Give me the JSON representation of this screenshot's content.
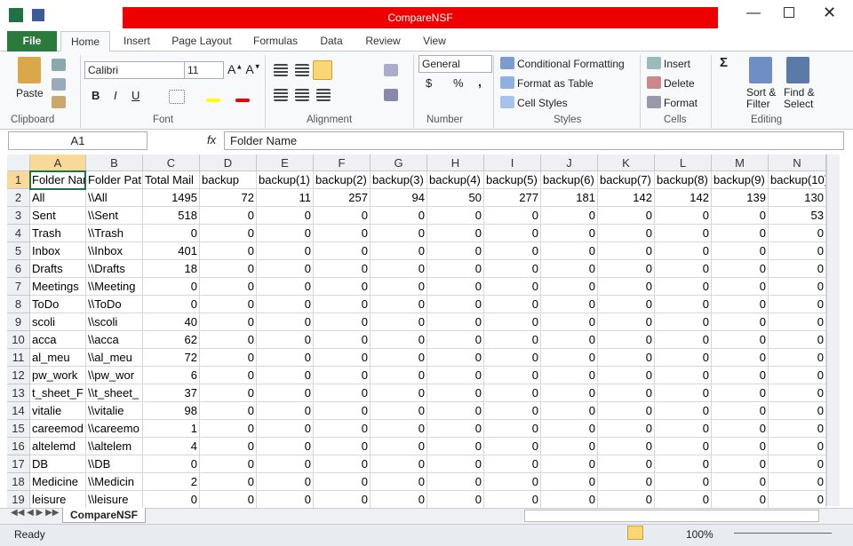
{
  "window": {
    "title": "CompareNSF"
  },
  "ribbon": {
    "tabs": [
      "File",
      "Home",
      "Insert",
      "Page Layout",
      "Formulas",
      "Data",
      "Review",
      "View"
    ],
    "clipboard": {
      "paste": "Paste",
      "label": "Clipboard"
    },
    "font": {
      "name": "Calibri",
      "size": "11",
      "bold": "B",
      "italic": "I",
      "underline": "U",
      "label": "Font"
    },
    "alignment": {
      "label": "Alignment"
    },
    "number": {
      "format": "General",
      "currency": "$",
      "percent": "%",
      "comma": ",",
      "label": "Number"
    },
    "styles": {
      "conditional": "Conditional Formatting",
      "table": "Format as Table",
      "cell": "Cell Styles",
      "label": "Styles"
    },
    "cells": {
      "insert": "Insert",
      "delete": "Delete",
      "format": "Format",
      "label": "Cells"
    },
    "editing": {
      "sort": "Sort & Filter",
      "find": "Find & Select",
      "label": "Editing"
    }
  },
  "formula_bar": {
    "name_box": "A1",
    "fx": "fx",
    "content": "Folder Name"
  },
  "table": {
    "columns": [
      "A",
      "B",
      "C",
      "D",
      "E",
      "F",
      "G",
      "H",
      "I",
      "J",
      "K",
      "L",
      "M",
      "N"
    ],
    "row_numbers": [
      1,
      2,
      3,
      4,
      5,
      6,
      7,
      8,
      9,
      10,
      11,
      12,
      13,
      14,
      15,
      16,
      17,
      18,
      19
    ],
    "rows": [
      [
        "Folder Name",
        "Folder Pat",
        "Total Mail",
        "backup",
        "backup(1)",
        "backup(2)",
        "backup(3)",
        "backup(4)",
        "backup(5)",
        "backup(6)",
        "backup(7)",
        "backup(8)",
        "backup(9)",
        "backup(10)"
      ],
      [
        "All",
        "\\\\All",
        1495,
        72,
        11,
        257,
        94,
        50,
        277,
        181,
        142,
        142,
        139,
        130
      ],
      [
        "Sent",
        "\\\\Sent",
        518,
        0,
        0,
        0,
        0,
        0,
        0,
        0,
        0,
        0,
        0,
        53
      ],
      [
        "Trash",
        "\\\\Trash",
        0,
        0,
        0,
        0,
        0,
        0,
        0,
        0,
        0,
        0,
        0,
        0
      ],
      [
        "Inbox",
        "\\\\Inbox",
        401,
        0,
        0,
        0,
        0,
        0,
        0,
        0,
        0,
        0,
        0,
        0
      ],
      [
        "Drafts",
        "\\\\Drafts",
        18,
        0,
        0,
        0,
        0,
        0,
        0,
        0,
        0,
        0,
        0,
        0
      ],
      [
        "Meetings",
        "\\\\Meeting",
        0,
        0,
        0,
        0,
        0,
        0,
        0,
        0,
        0,
        0,
        0,
        0
      ],
      [
        "ToDo",
        "\\\\ToDo",
        0,
        0,
        0,
        0,
        0,
        0,
        0,
        0,
        0,
        0,
        0,
        0
      ],
      [
        "scoli",
        "\\\\scoli",
        40,
        0,
        0,
        0,
        0,
        0,
        0,
        0,
        0,
        0,
        0,
        0
      ],
      [
        "acca",
        "\\\\acca",
        62,
        0,
        0,
        0,
        0,
        0,
        0,
        0,
        0,
        0,
        0,
        0
      ],
      [
        "al_meu",
        "\\\\al_meu",
        72,
        0,
        0,
        0,
        0,
        0,
        0,
        0,
        0,
        0,
        0,
        0
      ],
      [
        "pw_work",
        "\\\\pw_wor",
        6,
        0,
        0,
        0,
        0,
        0,
        0,
        0,
        0,
        0,
        0,
        0
      ],
      [
        "t_sheet_F",
        "\\\\t_sheet_",
        37,
        0,
        0,
        0,
        0,
        0,
        0,
        0,
        0,
        0,
        0,
        0
      ],
      [
        "vitalie",
        "\\\\vitalie",
        98,
        0,
        0,
        0,
        0,
        0,
        0,
        0,
        0,
        0,
        0,
        0
      ],
      [
        "careemod",
        "\\\\careemo",
        1,
        0,
        0,
        0,
        0,
        0,
        0,
        0,
        0,
        0,
        0,
        0
      ],
      [
        "altelemd",
        "\\\\altelem",
        4,
        0,
        0,
        0,
        0,
        0,
        0,
        0,
        0,
        0,
        0,
        0
      ],
      [
        "DB",
        "\\\\DB",
        0,
        0,
        0,
        0,
        0,
        0,
        0,
        0,
        0,
        0,
        0,
        0
      ],
      [
        "Medicine",
        "\\\\Medicin",
        2,
        0,
        0,
        0,
        0,
        0,
        0,
        0,
        0,
        0,
        0,
        0
      ],
      [
        "leisure",
        "\\\\leisure",
        0,
        0,
        0,
        0,
        0,
        0,
        0,
        0,
        0,
        0,
        0,
        0
      ]
    ]
  },
  "sheet_tabs": [
    "CompareNSF"
  ],
  "status": {
    "text": "Ready",
    "zoom": "100%"
  }
}
